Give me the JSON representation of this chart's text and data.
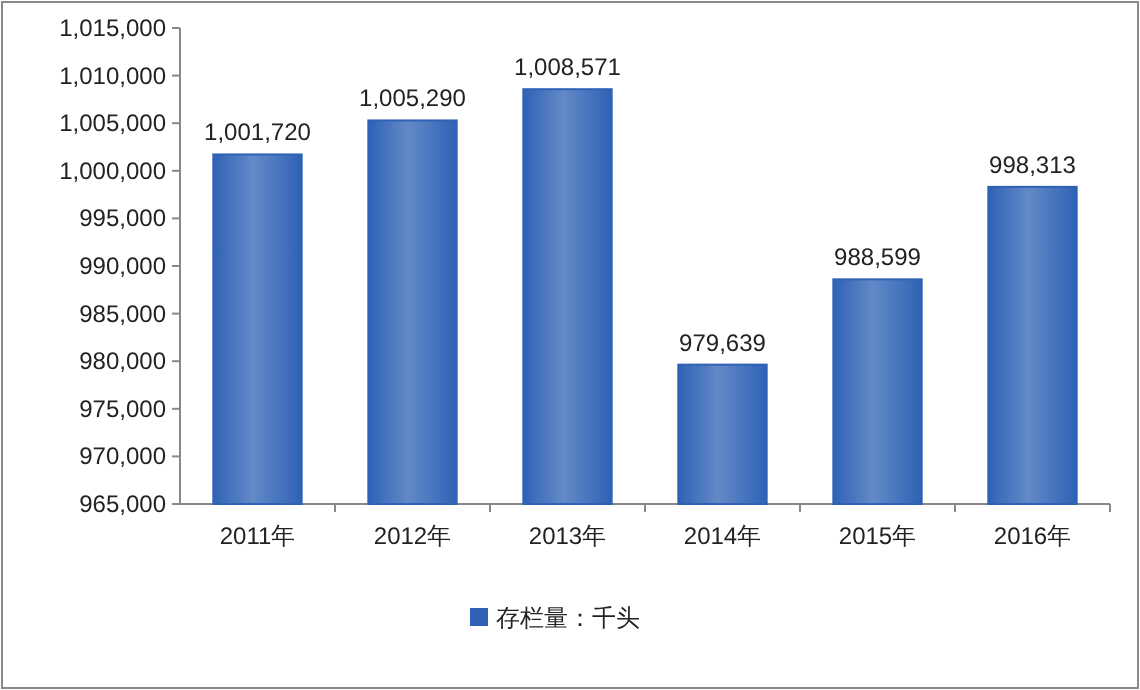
{
  "chart_data": {
    "type": "bar",
    "categories": [
      "2011年",
      "2012年",
      "2013年",
      "2014年",
      "2015年",
      "2016年"
    ],
    "series": [
      {
        "name": "存栏量：千头",
        "color": "#2f62b5",
        "values": [
          1001720,
          1005290,
          1008571,
          979639,
          988599,
          998313
        ],
        "value_labels": [
          "1,001,720",
          "1,005,290",
          "1,008,571",
          "979,639",
          "988,599",
          "998,313"
        ]
      }
    ],
    "ylim": [
      965000,
      1015000
    ],
    "yticks": [
      {
        "value": 965000,
        "label": "965,000"
      },
      {
        "value": 970000,
        "label": "970,000"
      },
      {
        "value": 975000,
        "label": "975,000"
      },
      {
        "value": 980000,
        "label": "980,000"
      },
      {
        "value": 985000,
        "label": "985,000"
      },
      {
        "value": 990000,
        "label": "990,000"
      },
      {
        "value": 995000,
        "label": "995,000"
      },
      {
        "value": 1000000,
        "label": "1,000,000"
      },
      {
        "value": 1005000,
        "label": "1,005,000"
      },
      {
        "value": 1010000,
        "label": "1,010,000"
      },
      {
        "value": 1015000,
        "label": "1,015,000"
      }
    ],
    "legend": "bottom",
    "grid": false
  }
}
